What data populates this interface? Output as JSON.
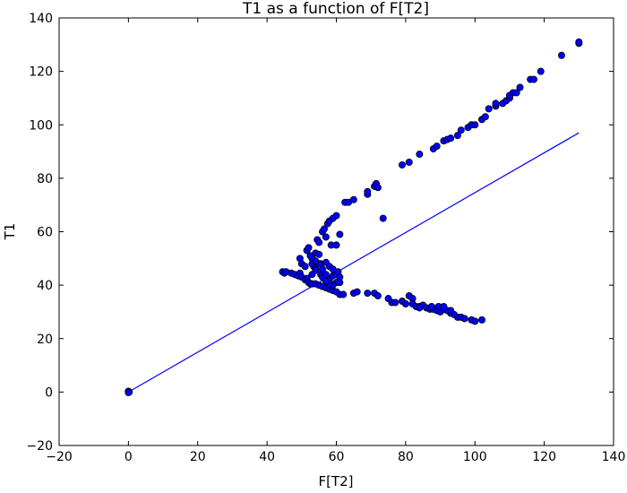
{
  "chart_data": {
    "type": "scatter",
    "title": "T1 as a function of F[T2]",
    "xlabel": "F[T2]",
    "ylabel": "T1",
    "xlim": [
      -20,
      140
    ],
    "ylim": [
      -20,
      140
    ],
    "xticks": [
      "−20",
      "0",
      "20",
      "40",
      "60",
      "80",
      "100",
      "120",
      "140"
    ],
    "yticks": [
      "−20",
      "0",
      "20",
      "40",
      "60",
      "80",
      "100",
      "120",
      "140"
    ],
    "grid": false,
    "legend": "none",
    "colors": {
      "marker_fill": "#0000ff",
      "marker_edge": "#000000",
      "line": "#0000ff"
    },
    "line": {
      "x": [
        0,
        130
      ],
      "y": [
        0,
        97
      ]
    },
    "series": [
      {
        "points": [
          [
            0,
            0
          ],
          [
            0,
            0.3
          ],
          [
            0.2,
            0
          ],
          [
            0,
            -0.2
          ],
          [
            44.5,
            45
          ],
          [
            45,
            44.5
          ],
          [
            45.5,
            45
          ],
          [
            47,
            44.5
          ],
          [
            48,
            44
          ],
          [
            49,
            43.5
          ],
          [
            49.5,
            44.5
          ],
          [
            50,
            43
          ],
          [
            51,
            42
          ],
          [
            51.5,
            42.5
          ],
          [
            52,
            41
          ],
          [
            52.5,
            40.5
          ],
          [
            53,
            40.5
          ],
          [
            54,
            40.5
          ],
          [
            55,
            40
          ],
          [
            56,
            39.5
          ],
          [
            57,
            39
          ],
          [
            58,
            38.5
          ],
          [
            59,
            38
          ],
          [
            60,
            37.5
          ],
          [
            61,
            36.5
          ],
          [
            62,
            36.5
          ],
          [
            65,
            37
          ],
          [
            66,
            37.5
          ],
          [
            69,
            37
          ],
          [
            71,
            37
          ],
          [
            72,
            36
          ],
          [
            75,
            35
          ],
          [
            76,
            33.5
          ],
          [
            77,
            33.5
          ],
          [
            79,
            34
          ],
          [
            80,
            33
          ],
          [
            81,
            36
          ],
          [
            82,
            35
          ],
          [
            82,
            33
          ],
          [
            83,
            32
          ],
          [
            84,
            32
          ],
          [
            85,
            32.5
          ],
          [
            86,
            31.5
          ],
          [
            87,
            31
          ],
          [
            88,
            31
          ],
          [
            89,
            30.5
          ],
          [
            90,
            30
          ],
          [
            91,
            31
          ],
          [
            92,
            30.5
          ],
          [
            93,
            29.5
          ],
          [
            94,
            29
          ],
          [
            95,
            28
          ],
          [
            96,
            28
          ],
          [
            97,
            27.5
          ],
          [
            99,
            27
          ],
          [
            100,
            26.5
          ],
          [
            102,
            27
          ],
          [
            89.5,
            32
          ],
          [
            91,
            32
          ],
          [
            93,
            30.5
          ],
          [
            84,
            31.5
          ],
          [
            87.5,
            32
          ],
          [
            49.5,
            50
          ],
          [
            50,
            48
          ],
          [
            51,
            47
          ],
          [
            51.5,
            53
          ],
          [
            52,
            54
          ],
          [
            52.5,
            51
          ],
          [
            53,
            50
          ],
          [
            53.5,
            47
          ],
          [
            54,
            46
          ],
          [
            54.5,
            57
          ],
          [
            55,
            56
          ],
          [
            55.5,
            48
          ],
          [
            56,
            60
          ],
          [
            56.5,
            61
          ],
          [
            57,
            58
          ],
          [
            57.5,
            63
          ],
          [
            58,
            64
          ],
          [
            58.5,
            55
          ],
          [
            59,
            65
          ],
          [
            60,
            66
          ],
          [
            60,
            55
          ],
          [
            61,
            59
          ],
          [
            62.5,
            71
          ],
          [
            63.5,
            71
          ],
          [
            65,
            72
          ],
          [
            69,
            74
          ],
          [
            69,
            75
          ],
          [
            71,
            77
          ],
          [
            71.5,
            78
          ],
          [
            72,
            76.5
          ],
          [
            73.5,
            65
          ],
          [
            54,
            52
          ],
          [
            55,
            51.5
          ],
          [
            53,
            44
          ],
          [
            54,
            45.5
          ],
          [
            55.5,
            44
          ],
          [
            56,
            43
          ],
          [
            57,
            44
          ],
          [
            58,
            42
          ],
          [
            59,
            43.5
          ],
          [
            60,
            44
          ],
          [
            60.5,
            45
          ],
          [
            61,
            43
          ],
          [
            61,
            41
          ],
          [
            60,
            41
          ],
          [
            59,
            40
          ],
          [
            58,
            40.5
          ],
          [
            57,
            41.5
          ],
          [
            56,
            46
          ],
          [
            55,
            48
          ],
          [
            57,
            48.5
          ],
          [
            58,
            47
          ],
          [
            59,
            46
          ],
          [
            53,
            48
          ],
          [
            54,
            49
          ],
          [
            79,
            85
          ],
          [
            81,
            86
          ],
          [
            84,
            89
          ],
          [
            88,
            91
          ],
          [
            89,
            92
          ],
          [
            91,
            94
          ],
          [
            92,
            94.5
          ],
          [
            93,
            95
          ],
          [
            95,
            96
          ],
          [
            96,
            98
          ],
          [
            98,
            99
          ],
          [
            99,
            100
          ],
          [
            100,
            100
          ],
          [
            102,
            102
          ],
          [
            103,
            103
          ],
          [
            104,
            106
          ],
          [
            106,
            107
          ],
          [
            106,
            108
          ],
          [
            108,
            108
          ],
          [
            109,
            109
          ],
          [
            110,
            110
          ],
          [
            110,
            111
          ],
          [
            111,
            112
          ],
          [
            112,
            112
          ],
          [
            113,
            114
          ],
          [
            116,
            117
          ],
          [
            117,
            117
          ],
          [
            119,
            120
          ],
          [
            125,
            126
          ],
          [
            130,
            130.5
          ],
          [
            130,
            131
          ]
        ]
      }
    ]
  }
}
